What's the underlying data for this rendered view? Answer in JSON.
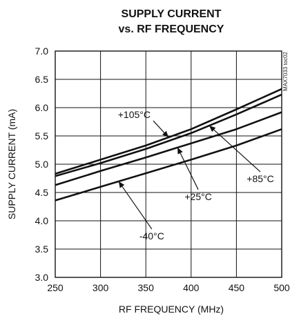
{
  "chart_data": {
    "type": "line",
    "title_line1": "SUPPLY CURRENT",
    "title_line2": "vs. RF FREQUENCY",
    "xlabel": "RF FREQUENCY (MHz)",
    "ylabel": "SUPPLY CURRENT (mA)",
    "xlim": [
      250,
      500
    ],
    "ylim": [
      3.0,
      7.0
    ],
    "x_ticks": [
      "250",
      "300",
      "350",
      "400",
      "450",
      "500"
    ],
    "y_ticks": [
      "3.0",
      "3.5",
      "4.0",
      "4.5",
      "5.0",
      "5.5",
      "6.0",
      "6.5",
      "7.0"
    ],
    "grid": true,
    "side_id": "MAX7033 toc02",
    "series": [
      {
        "name": "+105°C",
        "x": [
          250,
          300,
          350,
          400,
          450,
          500
        ],
        "y": [
          4.83,
          5.08,
          5.33,
          5.62,
          5.97,
          6.33
        ]
      },
      {
        "name": "+85°C",
        "x": [
          250,
          300,
          350,
          400,
          450,
          500
        ],
        "y": [
          4.79,
          5.02,
          5.27,
          5.55,
          5.88,
          6.23
        ]
      },
      {
        "name": "+25°C",
        "x": [
          250,
          300,
          350,
          400,
          450,
          500
        ],
        "y": [
          4.63,
          4.88,
          5.12,
          5.37,
          5.62,
          5.92
        ]
      },
      {
        "name": "-40°C",
        "x": [
          250,
          300,
          350,
          400,
          450,
          500
        ],
        "y": [
          4.36,
          4.6,
          4.84,
          5.08,
          5.33,
          5.62
        ]
      }
    ],
    "annotations": [
      {
        "text": "+105°C",
        "series": "+105°C",
        "at_x": 375
      },
      {
        "text": "+85°C",
        "series": "+85°C",
        "at_x": 420
      },
      {
        "text": "+25°C",
        "series": "+25°C",
        "at_x": 385
      },
      {
        "text": "-40°C",
        "series": "-40°C",
        "at_x": 320
      }
    ]
  }
}
